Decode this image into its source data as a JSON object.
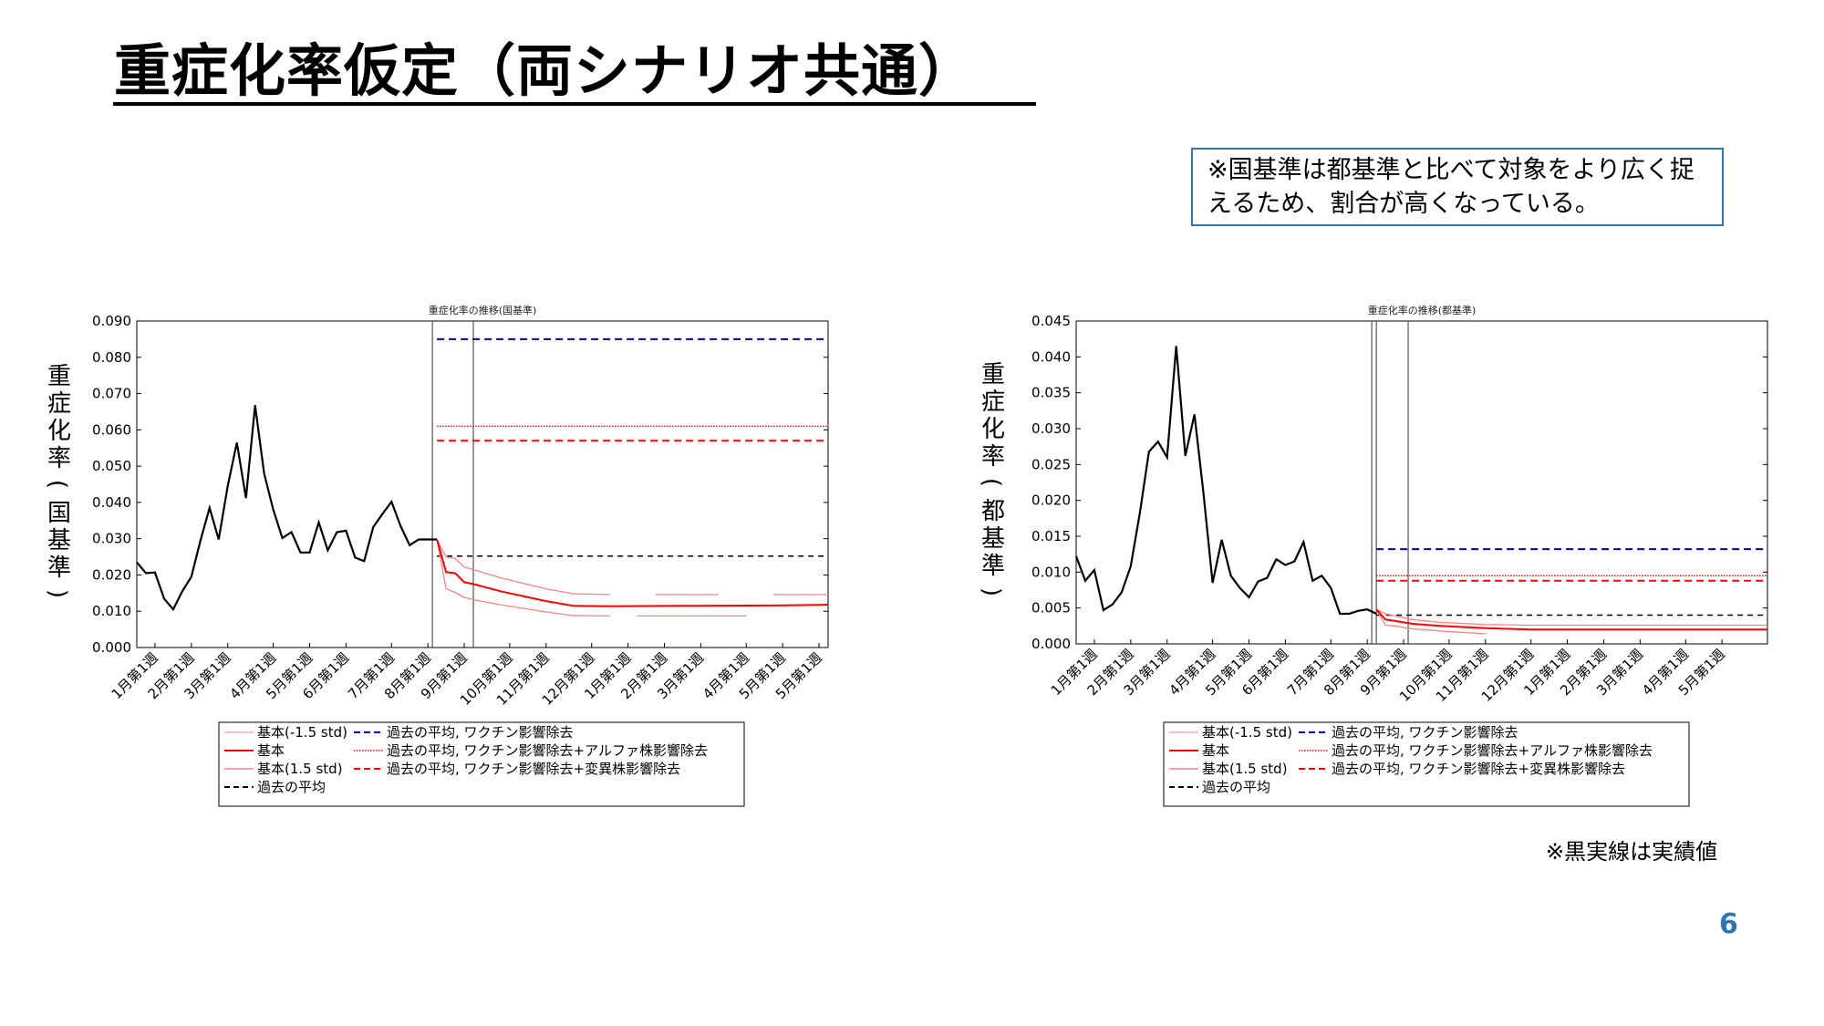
{
  "slide": {
    "title": "重症化率仮定（両シナリオ共通）",
    "note": "※国基準は都基準と比べて対象をより広く捉えるため、割合が高くなっている。",
    "footnote": "※黒実線は実績値",
    "page_number": "6"
  },
  "colors": {
    "accent": "#2e75b6",
    "actual": "#000000",
    "forecast": "#ff0000",
    "forecast_band": "#ff8080",
    "avg_vaccine": "#0000cc",
    "avg_vaccine_alpha": "#ff0000",
    "avg_vaccine_variant": "#ff0000",
    "avg_past": "#000000"
  },
  "chart_data": [
    {
      "type": "line",
      "title": "重症化率の推移(国基準)",
      "ylabel": "重症化率(国基準)",
      "xlabel": "",
      "ylim": [
        0,
        0.09
      ],
      "yticks": [
        "0.000",
        "0.010",
        "0.020",
        "0.030",
        "0.040",
        "0.050",
        "0.060",
        "0.070",
        "0.080",
        "0.090"
      ],
      "x_range_weeks": [
        0,
        76
      ],
      "x_ticks": [
        {
          "w": 2,
          "label": "1月第1週"
        },
        {
          "w": 6,
          "label": "2月第1週"
        },
        {
          "w": 10,
          "label": "3月第1週"
        },
        {
          "w": 15,
          "label": "4月第1週"
        },
        {
          "w": 19,
          "label": "5月第1週"
        },
        {
          "w": 23,
          "label": "6月第1週"
        },
        {
          "w": 28,
          "label": "7月第1週"
        },
        {
          "w": 32,
          "label": "8月第1週"
        },
        {
          "w": 36,
          "label": "9月第1週"
        },
        {
          "w": 41,
          "label": "10月第1週"
        },
        {
          "w": 45,
          "label": "11月第1週"
        },
        {
          "w": 50,
          "label": "12月第1週"
        },
        {
          "w": 54,
          "label": "1月第1週"
        },
        {
          "w": 58,
          "label": "2月第1週"
        },
        {
          "w": 62,
          "label": "3月第1週"
        },
        {
          "w": 67,
          "label": "4月第1週"
        },
        {
          "w": 71,
          "label": "5月第1週"
        },
        {
          "w": 75,
          "label": "5月第1週"
        }
      ],
      "vlines": [
        32.5,
        37
      ],
      "legend_placement": "bottom",
      "legend_left": [
        "基本(-1.5 std)",
        "基本",
        "基本(1.5 std)",
        "過去の平均"
      ],
      "legend_right": [
        "過去の平均, ワクチン影響除去",
        "過去の平均, ワクチン影響除去+アルファ株影響除去",
        "過去の平均, ワクチン影響除去+変異株影響除去"
      ],
      "actual": {
        "x": [
          0,
          1,
          2,
          3,
          4,
          5,
          6,
          7,
          8,
          9,
          10,
          11,
          12,
          13,
          14,
          15,
          16,
          17,
          18,
          19,
          20,
          21,
          22,
          23,
          24,
          25,
          26,
          27,
          28,
          29,
          30,
          31,
          32,
          33
        ],
        "y": [
          0.0235,
          0.0205,
          0.0207,
          0.0135,
          0.0105,
          0.0155,
          0.0195,
          0.0295,
          0.0385,
          0.0298,
          0.0445,
          0.0565,
          0.0412,
          0.0668,
          0.048,
          0.038,
          0.0302,
          0.0318,
          0.0262,
          0.0262,
          0.0345,
          0.0268,
          0.0318,
          0.0322,
          0.0248,
          0.0238,
          0.0332,
          0.0368,
          0.0402,
          0.0335,
          0.0282,
          0.0298,
          0.0298,
          0.0298
        ]
      },
      "forecast_base": {
        "x": [
          33,
          34,
          35,
          36,
          37,
          40,
          45,
          48,
          52,
          60,
          70,
          76
        ],
        "y": [
          0.0298,
          0.0208,
          0.0205,
          0.018,
          0.0175,
          0.0155,
          0.0128,
          0.0115,
          0.0114,
          0.0115,
          0.0116,
          0.0118
        ]
      },
      "forecast_low": {
        "x": [
          33,
          34,
          35,
          36,
          37,
          40,
          45,
          48
        ],
        "y": [
          0.0298,
          0.0162,
          0.0152,
          0.0138,
          0.0132,
          0.0118,
          0.0098,
          0.0088
        ]
      },
      "forecast_high": {
        "x": [
          33,
          34,
          35,
          36,
          37,
          40,
          45,
          48
        ],
        "y": [
          0.0298,
          0.025,
          0.0245,
          0.0222,
          0.0215,
          0.0192,
          0.0162,
          0.0148
        ]
      },
      "forecast_low_tail": [
        {
          "x": [
            48,
            52
          ],
          "y": [
            0.0088,
            0.0087
          ]
        },
        {
          "x": [
            55,
            67
          ],
          "y": [
            0.0087,
            0.0087
          ]
        }
      ],
      "forecast_high_tail": [
        {
          "x": [
            48,
            52
          ],
          "y": [
            0.0148,
            0.0146
          ]
        },
        {
          "x": [
            57,
            64
          ],
          "y": [
            0.0146,
            0.0146
          ]
        },
        {
          "x": [
            70,
            76
          ],
          "y": [
            0.0146,
            0.0146
          ]
        }
      ],
      "avg_vaccine": 0.085,
      "avg_vaccine_alpha": 0.061,
      "avg_vaccine_variant": 0.057,
      "avg_past": 0.0252,
      "hlines_start_week": 33
    },
    {
      "type": "line",
      "title": "重症化率の推移(都基準)",
      "ylabel": "重症化率(都基準)",
      "xlabel": "",
      "ylim": [
        0,
        0.045
      ],
      "yticks": [
        "0.000",
        "0.005",
        "0.010",
        "0.015",
        "0.020",
        "0.025",
        "0.030",
        "0.035",
        "0.040",
        "0.045"
      ],
      "x_range_weeks": [
        0,
        76
      ],
      "x_ticks": [
        {
          "w": 2,
          "label": "1月第1週"
        },
        {
          "w": 6,
          "label": "2月第1週"
        },
        {
          "w": 10,
          "label": "3月第1週"
        },
        {
          "w": 15,
          "label": "4月第1週"
        },
        {
          "w": 19,
          "label": "5月第1週"
        },
        {
          "w": 23,
          "label": "6月第1週"
        },
        {
          "w": 28,
          "label": "7月第1週"
        },
        {
          "w": 32,
          "label": "8月第1週"
        },
        {
          "w": 36,
          "label": "9月第1週"
        },
        {
          "w": 41,
          "label": "10月第1週"
        },
        {
          "w": 45,
          "label": "11月第1週"
        },
        {
          "w": 50,
          "label": "12月第1週"
        },
        {
          "w": 54,
          "label": "1月第1週"
        },
        {
          "w": 58,
          "label": "2月第1週"
        },
        {
          "w": 62,
          "label": "3月第1週"
        },
        {
          "w": 67,
          "label": "4月第1週"
        },
        {
          "w": 71,
          "label": "5月第1週"
        }
      ],
      "vlines": [
        32.5,
        33,
        36.5
      ],
      "legend_placement": "bottom",
      "legend_left": [
        "基本(-1.5 std)",
        "基本",
        "基本(1.5 std)",
        "過去の平均"
      ],
      "legend_right": [
        "過去の平均, ワクチン影響除去",
        "過去の平均, ワクチン影響除去+アルファ株影響除去",
        "過去の平均, ワクチン影響除去+変異株影響除去"
      ],
      "actual": {
        "x": [
          0,
          1,
          2,
          3,
          4,
          5,
          6,
          7,
          8,
          9,
          10,
          11,
          12,
          13,
          14,
          15,
          16,
          17,
          18,
          19,
          20,
          21,
          22,
          23,
          24,
          25,
          26,
          27,
          28,
          29,
          30,
          31,
          32,
          33
        ],
        "y": [
          0.0122,
          0.0088,
          0.0103,
          0.0047,
          0.0055,
          0.0072,
          0.0108,
          0.0182,
          0.0268,
          0.0282,
          0.026,
          0.0415,
          0.0262,
          0.032,
          0.021,
          0.0085,
          0.0145,
          0.0095,
          0.0078,
          0.0065,
          0.0087,
          0.0092,
          0.0118,
          0.011,
          0.0115,
          0.0142,
          0.0088,
          0.0095,
          0.0078,
          0.0042,
          0.0042,
          0.0046,
          0.0048,
          0.0042
        ]
      },
      "forecast_base": {
        "x": [
          33,
          34,
          35,
          37,
          40,
          45,
          50,
          60,
          76
        ],
        "y": [
          0.0048,
          0.0034,
          0.0032,
          0.0028,
          0.0025,
          0.0022,
          0.002,
          0.002,
          0.002
        ]
      },
      "forecast_low": {
        "x": [
          33,
          34,
          35,
          37,
          40,
          45
        ],
        "y": [
          0.0048,
          0.0026,
          0.0025,
          0.0021,
          0.0018,
          0.0014
        ]
      },
      "forecast_high": {
        "x": [
          33,
          34,
          35,
          37,
          40,
          45,
          50,
          60,
          76
        ],
        "y": [
          0.0048,
          0.0042,
          0.0039,
          0.0034,
          0.003,
          0.0027,
          0.0026,
          0.0026,
          0.0026
        ]
      },
      "forecast_low_tail": [],
      "forecast_high_tail": [],
      "avg_vaccine": 0.0132,
      "avg_vaccine_alpha": 0.0095,
      "avg_vaccine_variant": 0.0088,
      "avg_past": 0.004,
      "hlines_start_week": 33
    }
  ]
}
